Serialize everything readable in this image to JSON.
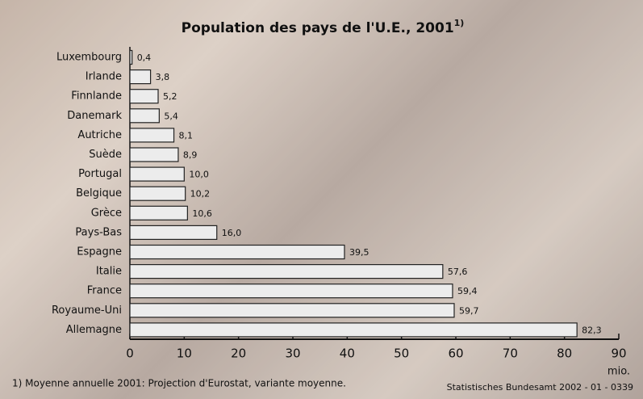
{
  "chart_data": {
    "type": "hbar",
    "title": "Population des pays de l'U.E., 2001",
    "title_note": "1)",
    "categories": [
      "Luxembourg",
      "Irlande",
      "Finnlande",
      "Danemark",
      "Autriche",
      "Suède",
      "Portugal",
      "Belgique",
      "Grèce",
      "Pays-Bas",
      "Espagne",
      "Italie",
      "France",
      "Royaume-Uni",
      "Allemagne"
    ],
    "values": [
      0.4,
      3.8,
      5.2,
      5.4,
      8.1,
      8.9,
      10.0,
      10.2,
      10.6,
      16.0,
      39.5,
      57.6,
      59.4,
      59.7,
      82.3
    ],
    "value_labels": [
      "0,4",
      "3,8",
      "5,2",
      "5,4",
      "8,1",
      "8,9",
      "10,0",
      "10,2",
      "10,6",
      "16,0",
      "39,5",
      "57,6",
      "59,4",
      "59,7",
      "82,3"
    ],
    "color": "#ececec",
    "xlim": [
      0,
      90
    ],
    "xticks": [
      0,
      10,
      20,
      30,
      40,
      50,
      60,
      70,
      80,
      90
    ],
    "x_unit": "mio.",
    "footnote": "1) Moyenne annuelle 2001: Projection d'Eurostat, variante moyenne.",
    "source": "Statistisches Bundesamt 2002 - 01 - 0339"
  }
}
